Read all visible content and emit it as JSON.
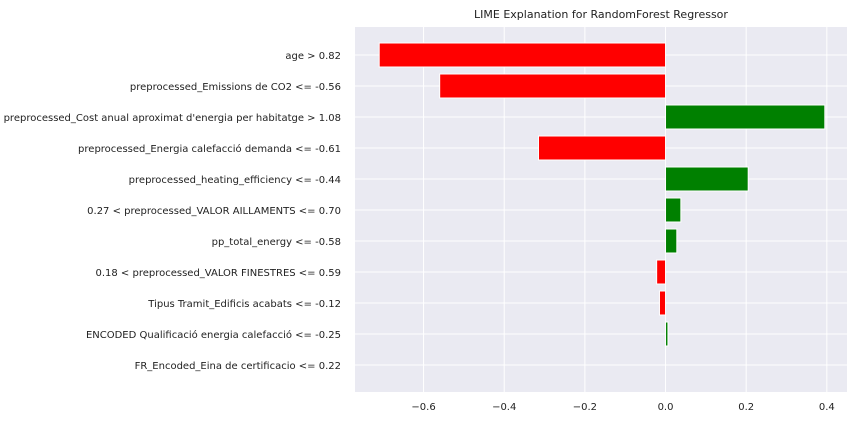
{
  "chart_data": {
    "type": "bar",
    "orientation": "horizontal",
    "title": "LIME Explanation for RandomForest Regressor",
    "xlabel": "",
    "ylabel": "",
    "categories": [
      "age > 0.82",
      "preprocessed_Emissions de CO2 <= -0.56",
      "preprocessed_Cost anual aproximat d'energia per habitatge > 1.08",
      "preprocessed_Energia calefacció demanda <= -0.61",
      "preprocessed_heating_efficiency <= -0.44",
      "0.27 < preprocessed_VALOR AILLAMENTS <= 0.70",
      "pp_total_energy <= -0.58",
      "0.18 < preprocessed_VALOR FINESTRES <= 0.59",
      "Tipus Tramit_Edificis acabats <= -0.12",
      "ENCODED Qualificació energia calefacció <= -0.25",
      "FR_Encoded_Eina de certificacio <= 0.22"
    ],
    "values": [
      -0.71,
      -0.56,
      0.395,
      -0.315,
      0.205,
      0.038,
      0.028,
      -0.022,
      -0.015,
      0.006,
      0.0
    ],
    "xlim": [
      -0.77,
      0.45
    ],
    "xticks": [
      -0.6,
      -0.4,
      -0.2,
      0.0,
      0.2,
      0.4
    ],
    "xtick_labels": [
      "−0.6",
      "−0.4",
      "−0.2",
      "0.0",
      "0.2",
      "0.4"
    ],
    "grid": true,
    "colors": {
      "positive": "#008000",
      "negative": "#ff0000",
      "background": "#eaeaf2",
      "grid": "#ffffff"
    }
  }
}
